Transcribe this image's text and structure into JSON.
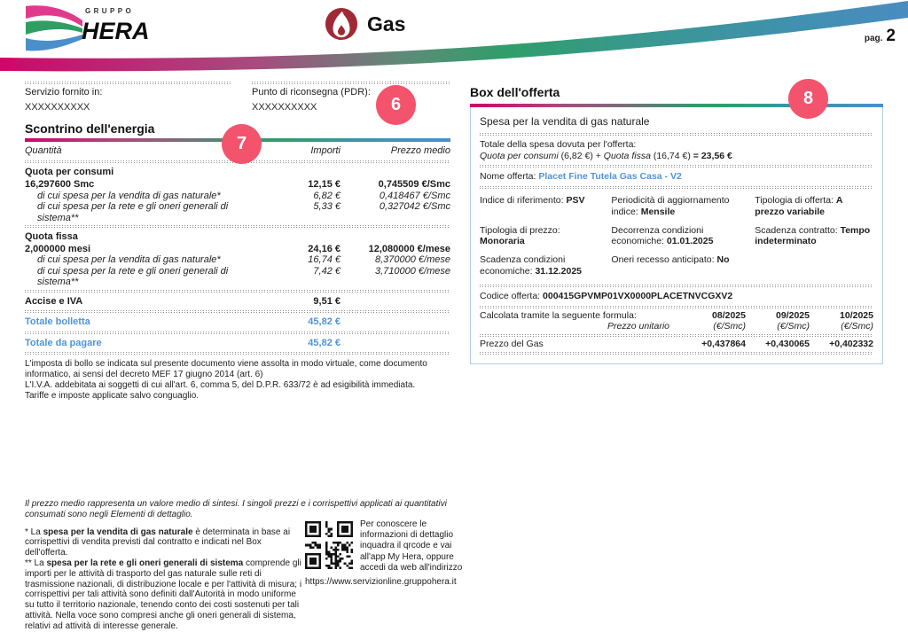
{
  "header": {
    "brand_top": "GRUPPO",
    "brand": "HERA",
    "service": "Gas",
    "page_label": "pag.",
    "page_number": "2"
  },
  "supply": {
    "service_label": "Servizio fornito in:",
    "service_value": "XXXXXXXXXX",
    "pdr_label": "Punto di riconsegna (PDR):",
    "pdr_value": "XXXXXXXXXX",
    "badge": "6"
  },
  "receipt": {
    "title": "Scontrino dell'energia",
    "badge": "7",
    "columns": {
      "qty": "Quantità",
      "amount": "Importi",
      "avg": "Prezzo medio"
    },
    "sections": [
      {
        "name": "Quota per consumi",
        "qty": "16,297600 Smc",
        "amount": "12,15 €",
        "avg": "0,745509 €/Smc",
        "subrows": [
          {
            "label": "di cui spesa per la vendita di gas naturale*",
            "amount": "6,82 €",
            "avg": "0,418467 €/Smc"
          },
          {
            "label": "di cui spesa per la rete e gli oneri generali di sistema**",
            "amount": "5,33 €",
            "avg": "0,327042 €/Smc"
          }
        ]
      },
      {
        "name": "Quota fissa",
        "qty": "2,000000 mesi",
        "amount": "24,16 €",
        "avg": "12,080000 €/mese",
        "subrows": [
          {
            "label": "di cui spesa per la vendita di gas naturale*",
            "amount": "16,74 €",
            "avg": "8,370000 €/mese"
          },
          {
            "label": "di cui spesa per la rete e gli oneri generali di sistema**",
            "amount": "7,42 €",
            "avg": "3,710000 €/mese"
          }
        ]
      }
    ],
    "accise": {
      "label": "Accise e IVA",
      "amount": "9,51 €"
    },
    "totals": [
      {
        "label": "Totale bolletta",
        "amount": "45,82 €"
      },
      {
        "label": "Totale da pagare",
        "amount": "45,82 €"
      }
    ],
    "legal": [
      "L'imposta di bollo se indicata sul presente documento viene assolta in modo virtuale, come documento informatico, ai sensi del decreto MEF 17 giugno 2014 (art. 6)",
      "L'I.V.A. addebitata ai soggetti di cui all'art. 6, comma 5, del D.P.R. 633/72 è ad esigibilità immediata.",
      "Tariffe e imposte applicate salvo conguaglio."
    ]
  },
  "offer": {
    "title": "Box dell'offerta",
    "badge": "8",
    "subtitle": "Spesa per la vendita di gas naturale",
    "total_label": "Totale della spesa dovuta per l'offerta:",
    "formula": {
      "it1": "Quota per consumi",
      "mid1": " (6,82 €) + ",
      "it2": "Quota fissa",
      "mid2": " (16,74 €) ",
      "bold": "= 23,56 €"
    },
    "name_label": "Nome offerta:",
    "name_value": "Placet Fine Tutela Gas Casa - V2",
    "details": [
      {
        "label": "Indice di riferimento:",
        "value": "PSV"
      },
      {
        "label": "Periodicità di aggiornamento indice:",
        "value": "Mensile"
      },
      {
        "label": "Tipologia di offerta:",
        "value": "A prezzo variabile"
      },
      {
        "label": "Tipologia di prezzo:",
        "value": "Monoraria"
      },
      {
        "label": "Decorrenza condizioni economiche:",
        "value": "01.01.2025"
      },
      {
        "label": "Scadenza contratto:",
        "value": "Tempo indeterminato"
      },
      {
        "label": "Scadenza condizioni economiche:",
        "value": "31.12.2025"
      },
      {
        "label": "Oneri recesso anticipato:",
        "value": "No"
      }
    ],
    "code_label": "Codice offerta:",
    "code_value": "000415GPVMP01VX0000PLACETNVCGXV2",
    "price_table": {
      "caption": "Calcolata tramite la seguente formula:",
      "unit_label": "Prezzo unitario",
      "months": [
        "08/2025",
        "09/2025",
        "10/2025"
      ],
      "units": [
        "(€/Smc)",
        "(€/Smc)",
        "(€/Smc)"
      ],
      "row_label": "Prezzo del Gas",
      "values": [
        "+0,437864",
        "+0,430065",
        "+0,402332"
      ]
    }
  },
  "footnotes": {
    "intro": "Il prezzo medio rappresenta un valore medio di sintesi. I singoli prezzi e i corrispettivi applicati ai quantitativi consumati sono negli Elementi di dettaglio.",
    "note1_prefix": "* La ",
    "note1_bold": "spesa per la vendita di gas naturale",
    "note1_rest": " è determinata in base ai corrispettivi di vendita previsti dal contratto e indicati nel Box dell'offerta.",
    "note2_prefix": "** La ",
    "note2_bold": "spesa per la rete e gli oneri generali di sistema",
    "note2_rest": " comprende gli importi per le attività di trasporto del gas naturale sulle reti di trasmissione nazionali, di distribuzione locale e per l'attività di misura; i corrispettivi per tali attività sono definiti dall'Autorità in modo uniforme su tutto il territorio nazionale, tenendo conto dei costi sostenuti per tali attività. Nella voce sono compresi anche gli oneri generali di sistema, relativi ad attività di interesse generale."
  },
  "qr": {
    "text": "Per conoscere le informazioni di dettaglio inquadra il qrcode e vai all'app My Hera, oppure accedi da web all'indirizzo",
    "url": "https://www.servizionline.gruppohera.it"
  },
  "colors": {
    "accent_blue": "#4f95d8",
    "badge_pink": "#f4536d",
    "flame_red": "#9e2a35",
    "brand_magenta": "#d6006e",
    "brand_green": "#2f9e62",
    "brand_blue": "#4a8fca"
  }
}
